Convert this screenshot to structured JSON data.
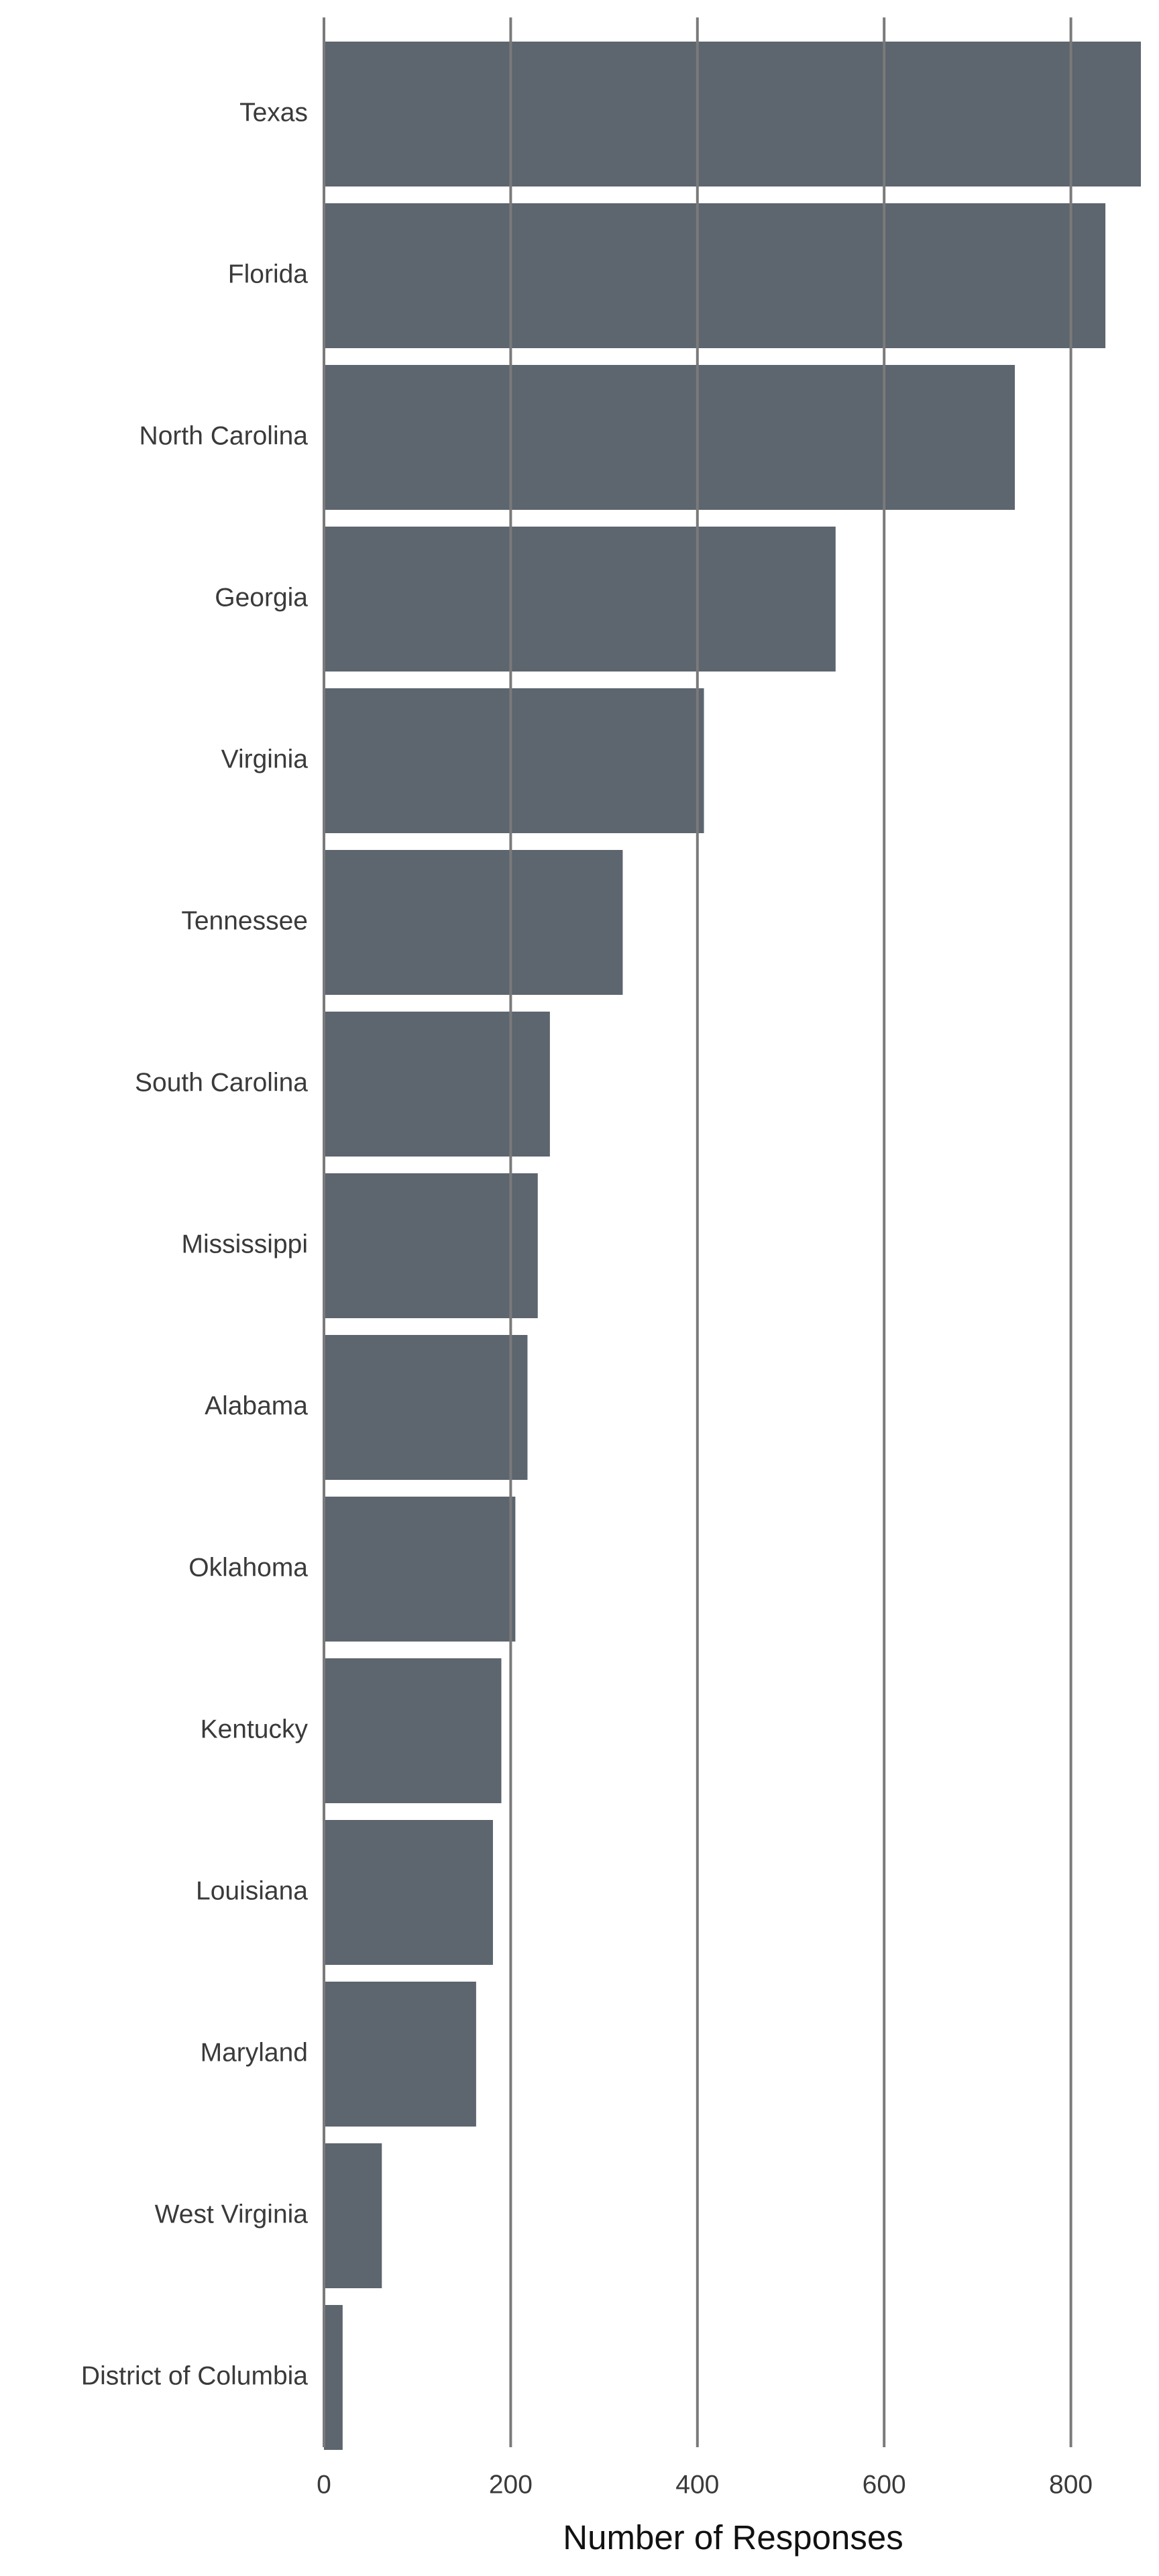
{
  "chart_data": {
    "type": "bar",
    "orientation": "horizontal",
    "categories": [
      "Texas",
      "Florida",
      "North Carolina",
      "Georgia",
      "Virginia",
      "Tennessee",
      "South Carolina",
      "Mississippi",
      "Alabama",
      "Oklahoma",
      "Kentucky",
      "Louisiana",
      "Maryland",
      "West Virginia",
      "District of Columbia"
    ],
    "values": [
      875,
      837,
      740,
      548,
      407,
      320,
      242,
      229,
      218,
      205,
      190,
      181,
      163,
      62,
      20
    ],
    "xlabel": "Number of Responses",
    "ylabel": "",
    "xlim": [
      0,
      875
    ],
    "xticks": [
      0,
      200,
      400,
      600,
      800
    ],
    "grid": "vertical",
    "bar_color": "#5d656e"
  }
}
